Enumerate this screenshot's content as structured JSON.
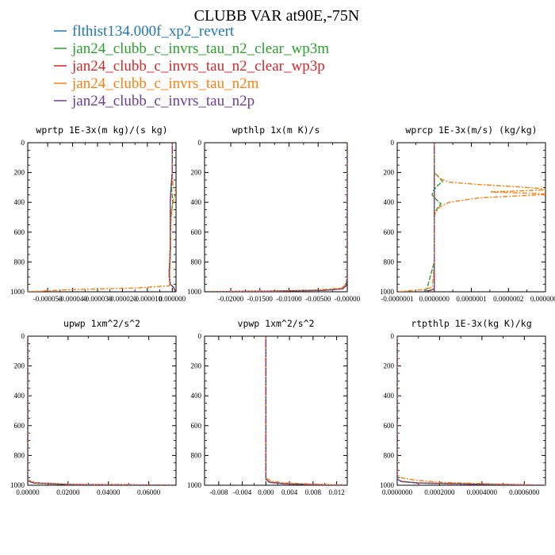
{
  "figure_title": "CLUBB VAR at90E,-75N",
  "colors": {
    "flthist134.000f_xp2_revert": "#1f77b4",
    "jan24_clubb_c_invrs_tau_n2_clear_wp3m": "#2ca02c",
    "jan24_clubb_c_invrs_tau_n2_clear_wp3p": "#d62728",
    "jan24_clubb_c_invrs_tau_n2m": "#ff7f0e",
    "jan24_clubb_c_invrs_tau_n2p": "#6a3d9a"
  },
  "legend": [
    {
      "label": "flthist134.000f_xp2_revert",
      "color": "#1f77b4"
    },
    {
      "label": "jan24_clubb_c_invrs_tau_n2_clear_wp3m",
      "color": "#2ca02c"
    },
    {
      "label": "jan24_clubb_c_invrs_tau_n2_clear_wp3p",
      "color": "#d62728"
    },
    {
      "label": "jan24_clubb_c_invrs_tau_n2m",
      "color": "#ff7f0e"
    },
    {
      "label": "jan24_clubb_c_invrs_tau_n2p",
      "color": "#6a3d9a"
    }
  ],
  "chart_data": [
    {
      "type": "line",
      "title": "wprtp  1E-3x(m kg)/(s kg)",
      "xlim": [
        -5.8e-05,
        1.5e-06
      ],
      "ylim": [
        1000,
        0
      ],
      "xticks": [
        -5e-05,
        -4e-05,
        -3e-05,
        -2e-05,
        -1e-05,
        0.0
      ],
      "xtick_labels": [
        "-0.000050",
        "-0.000040",
        "-0.000030",
        "-0.000020",
        "-0.000010",
        "0.000000"
      ],
      "yticks": [
        0,
        200,
        400,
        600,
        800,
        1000
      ],
      "series": [
        {
          "color": "#1f77b4",
          "y": [
            0,
            200,
            300,
            400,
            500,
            600,
            700,
            800,
            850,
            900,
            950,
            970,
            990,
            1000
          ],
          "x": [
            0,
            0,
            -5e-07,
            -8e-07,
            -8e-07,
            -8e-07,
            -8e-07,
            -1e-06,
            -1.2e-06,
            -1.2e-06,
            -8e-07,
            5e-07,
            1e-06,
            1.2e-06
          ]
        },
        {
          "color": "#2ca02c",
          "y": [
            0,
            200,
            300,
            400,
            500,
            600,
            700,
            800,
            850,
            900,
            950,
            970,
            990,
            1000
          ],
          "x": [
            0,
            0,
            -3e-07,
            2e-07,
            -5e-07,
            -8e-07,
            -8e-07,
            -1e-06,
            -1.2e-06,
            -1.2e-06,
            -8e-07,
            5e-07,
            1e-06,
            1.2e-06
          ]
        },
        {
          "color": "#d62728",
          "y": [
            0,
            200,
            300,
            400,
            500,
            600,
            700,
            800,
            850,
            900,
            950,
            970,
            990,
            1000
          ],
          "x": [
            0,
            0,
            -5e-07,
            -8e-07,
            -8e-07,
            -8e-07,
            -8e-07,
            -1e-06,
            -1.2e-06,
            -1.2e-06,
            -8e-07,
            5e-07,
            1e-06,
            1.2e-06
          ]
        },
        {
          "color": "#ff7f0e",
          "y": [
            0,
            200,
            300,
            330,
            380,
            450,
            500,
            600,
            700,
            800,
            900,
            960,
            975,
            985,
            1000
          ],
          "x": [
            0,
            0,
            3e-07,
            1.5e-06,
            5e-07,
            -3e-07,
            -5e-07,
            -6e-07,
            -6e-07,
            -8e-07,
            -1e-06,
            -1.2e-06,
            -1.5e-05,
            -4e-05,
            -5.8e-05
          ]
        },
        {
          "color": "#6a3d9a",
          "y": [
            0,
            200,
            300,
            400,
            500,
            600,
            700,
            800,
            850,
            900,
            950,
            970,
            990,
            1000
          ],
          "x": [
            0,
            0,
            -5e-07,
            -8e-07,
            -8e-07,
            -8e-07,
            -8e-07,
            -1e-06,
            -1.2e-06,
            -1.2e-06,
            -8e-07,
            5e-07,
            1e-06,
            1.2e-06
          ]
        }
      ]
    },
    {
      "type": "line",
      "title": "wpthlp  1x(m K)/s",
      "xlim": [
        -0.0245,
        0.0
      ],
      "ylim": [
        1000,
        0
      ],
      "xticks": [
        -0.02,
        -0.015,
        -0.01,
        -0.005,
        0.0
      ],
      "xtick_labels": [
        "-0.02000",
        "-0.01500",
        "-0.01000",
        "-0.00500",
        "-0.00000"
      ],
      "yticks": [
        0,
        200,
        400,
        600,
        800,
        1000
      ],
      "series": [
        {
          "color": "#1f77b4",
          "y": [
            0,
            900,
            960,
            980,
            990,
            995,
            1000
          ],
          "x": [
            0,
            0,
            -0.0002,
            -0.0008,
            -0.004,
            -0.012,
            -0.024
          ]
        },
        {
          "color": "#2ca02c",
          "y": [
            0,
            900,
            960,
            980,
            990,
            995,
            1000
          ],
          "x": [
            0,
            0,
            -0.0002,
            -0.0008,
            -0.004,
            -0.012,
            -0.024
          ]
        },
        {
          "color": "#d62728",
          "y": [
            0,
            900,
            960,
            980,
            990,
            995,
            1000
          ],
          "x": [
            0,
            0,
            -0.0002,
            -0.0008,
            -0.004,
            -0.012,
            -0.024
          ]
        },
        {
          "color": "#ff7f0e",
          "y": [
            0,
            900,
            950,
            975,
            988,
            995,
            1000
          ],
          "x": [
            0,
            0,
            -0.0002,
            -0.001,
            -0.005,
            -0.013,
            -0.024
          ]
        },
        {
          "color": "#6a3d9a",
          "y": [
            0,
            900,
            960,
            980,
            990,
            995,
            1000
          ],
          "x": [
            0,
            0,
            -0.0002,
            -0.0008,
            -0.004,
            -0.012,
            -0.024
          ]
        }
      ]
    },
    {
      "type": "line",
      "title": "wprcp  1E-3x(m/s) (kg/kg)",
      "xlim": [
        -1e-07,
        3e-07
      ],
      "ylim": [
        1000,
        0
      ],
      "xticks": [
        -1e-07,
        0.0,
        1e-07,
        2e-07,
        3e-07
      ],
      "xtick_labels": [
        "-0.0000001",
        "0.0000000",
        "0.0000001",
        "0.0000002",
        "0.0000003"
      ],
      "yticks": [
        0,
        200,
        400,
        600,
        800,
        1000
      ],
      "series": [
        {
          "color": "#1f77b4",
          "y": [
            0,
            980,
            990,
            1000
          ],
          "x": [
            0,
            0,
            -1e-08,
            -3e-08
          ]
        },
        {
          "color": "#2ca02c",
          "y": [
            0,
            200,
            230,
            260,
            290,
            320,
            350,
            380,
            410,
            440,
            470,
            500,
            600,
            800,
            980,
            1000
          ],
          "x": [
            0,
            0,
            1.2e-08,
            2.2e-08,
            8e-09,
            -2e-09,
            -6e-09,
            5e-09,
            1.8e-08,
            8e-09,
            2e-09,
            0,
            0,
            0,
            -2e-08,
            -3e-08
          ]
        },
        {
          "color": "#d62728",
          "y": [
            0,
            980,
            990,
            1000
          ],
          "x": [
            0,
            0,
            -1e-08,
            -3e-08
          ]
        },
        {
          "color": "#ff7f0e",
          "y": [
            0,
            200,
            240,
            265,
            280,
            300,
            315,
            330,
            345,
            370,
            400,
            430,
            470,
            500,
            600,
            800,
            970,
            985,
            1000
          ],
          "x": [
            0,
            0,
            1.5e-08,
            4e-08,
            1.2e-07,
            2.5e-07,
            3.2e-07,
            1.5e-07,
            3.2e-07,
            1.2e-07,
            4e-08,
            1.5e-08,
            3e-09,
            0,
            0,
            0,
            -5e-09,
            -3e-08,
            -1e-07
          ]
        },
        {
          "color": "#6a3d9a",
          "y": [
            0,
            980,
            990,
            1000
          ],
          "x": [
            0,
            0,
            -1e-08,
            -3e-08
          ]
        }
      ]
    },
    {
      "type": "line",
      "title": "upwp  1xm^2/s^2",
      "xlim": [
        0.0,
        0.0735
      ],
      "ylim": [
        1000,
        0
      ],
      "xticks": [
        0.0,
        0.02,
        0.04,
        0.06
      ],
      "xtick_labels": [
        "0.00000",
        "0.02000",
        "0.04000",
        "0.06000"
      ],
      "yticks": [
        0,
        200,
        400,
        600,
        800,
        1000
      ],
      "series": [
        {
          "color": "#1f77b4",
          "y": [
            0,
            970,
            985,
            995,
            1000
          ],
          "x": [
            0,
            0,
            0.003,
            0.02,
            0.073
          ]
        },
        {
          "color": "#2ca02c",
          "y": [
            0,
            970,
            985,
            995,
            1000
          ],
          "x": [
            0,
            0,
            0.003,
            0.02,
            0.073
          ]
        },
        {
          "color": "#d62728",
          "y": [
            0,
            970,
            985,
            995,
            1000
          ],
          "x": [
            0,
            0,
            0.003,
            0.02,
            0.073
          ]
        },
        {
          "color": "#ff7f0e",
          "y": [
            0,
            965,
            982,
            994,
            1000
          ],
          "x": [
            0,
            0,
            0.004,
            0.022,
            0.073
          ]
        },
        {
          "color": "#6a3d9a",
          "y": [
            0,
            970,
            985,
            995,
            1000
          ],
          "x": [
            0,
            0,
            0.003,
            0.02,
            0.073
          ]
        }
      ]
    },
    {
      "type": "line",
      "title": "vpwp  1xm^2/s^2",
      "xlim": [
        -0.0104,
        0.0138
      ],
      "ylim": [
        1000,
        0
      ],
      "xticks": [
        -0.008,
        -0.004,
        0.0,
        0.004,
        0.008,
        0.012
      ],
      "xtick_labels": [
        "-0.008",
        "-0.004",
        "0.000",
        "0.004",
        "0.008",
        "0.012"
      ],
      "yticks": [
        0,
        200,
        400,
        600,
        800,
        1000
      ],
      "series": [
        {
          "color": "#1f77b4",
          "y": [
            0,
            960,
            980,
            990,
            996,
            1000
          ],
          "x": [
            0,
            0,
            0.0006,
            0.003,
            0.008,
            0.0135
          ]
        },
        {
          "color": "#2ca02c",
          "y": [
            0,
            960,
            980,
            990,
            996,
            1000
          ],
          "x": [
            0,
            0,
            0.0006,
            0.003,
            0.008,
            0.0135
          ]
        },
        {
          "color": "#d62728",
          "y": [
            0,
            960,
            980,
            990,
            996,
            1000
          ],
          "x": [
            0,
            0,
            0.0006,
            0.003,
            0.008,
            0.0135
          ]
        },
        {
          "color": "#ff7f0e",
          "y": [
            0,
            950,
            972,
            985,
            994,
            1000
          ],
          "x": [
            0,
            0,
            0.0008,
            0.0035,
            0.009,
            0.0135
          ]
        },
        {
          "color": "#6a3d9a",
          "y": [
            0,
            960,
            980,
            990,
            996,
            1000
          ],
          "x": [
            0,
            0,
            0.0006,
            0.003,
            0.008,
            0.0135
          ]
        }
      ]
    },
    {
      "type": "line",
      "title": "rtpthlp  1E-3x(kg K)/kg",
      "xlim": [
        0.0,
        0.0007
      ],
      "ylim": [
        1000,
        0
      ],
      "xticks": [
        0.0,
        0.0002,
        0.0004,
        0.0006
      ],
      "xtick_labels": [
        "0.0000000",
        "0.0002000",
        "0.0004000",
        "0.0006000"
      ],
      "yticks": [
        0,
        200,
        400,
        600,
        800,
        1000
      ],
      "series": [
        {
          "color": "#1f77b4",
          "y": [
            0,
            960,
            975,
            985,
            994,
            1000
          ],
          "x": [
            0,
            0,
            2e-05,
            0.0001,
            0.0004,
            0.0007
          ]
        },
        {
          "color": "#2ca02c",
          "y": [
            0,
            960,
            975,
            985,
            994,
            1000
          ],
          "x": [
            0,
            0,
            2e-05,
            0.0001,
            0.0004,
            0.0007
          ]
        },
        {
          "color": "#d62728",
          "y": [
            0,
            960,
            975,
            985,
            994,
            1000
          ],
          "x": [
            0,
            0,
            2e-05,
            0.0001,
            0.0004,
            0.0007
          ]
        },
        {
          "color": "#ff7f0e",
          "y": [
            0,
            930,
            950,
            965,
            980,
            993,
            1000
          ],
          "x": [
            0,
            0,
            2e-05,
            8e-05,
            0.0002,
            0.0005,
            0.0007
          ]
        },
        {
          "color": "#6a3d9a",
          "y": [
            0,
            960,
            975,
            985,
            994,
            1000
          ],
          "x": [
            0,
            0,
            2e-05,
            0.0001,
            0.0004,
            0.0007
          ]
        }
      ]
    }
  ]
}
